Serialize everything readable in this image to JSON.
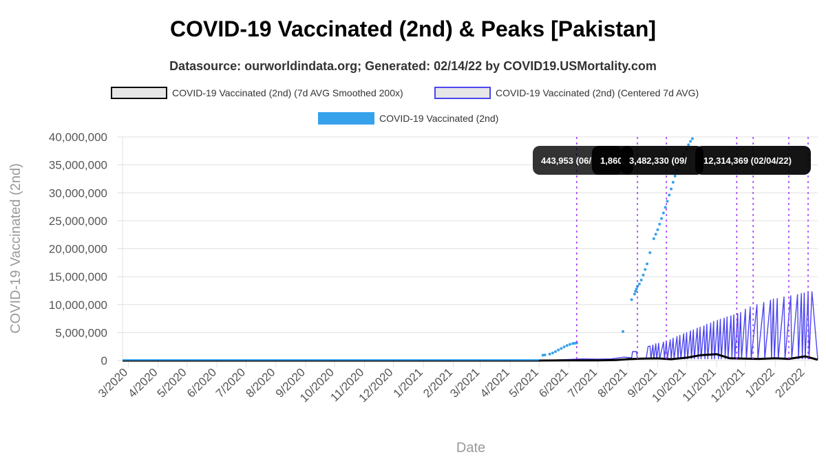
{
  "title": "COVID-19 Vaccinated (2nd) & Peaks [Pakistan]",
  "subtitle": "Datasource: ourworldindata.org; Generated: 02/14/22 by COVID19.USMortality.com",
  "colors": {
    "smoothed": "#000000",
    "centered": "#4b45f0",
    "raw": "#36a2eb",
    "peak_line": "#9b30ff",
    "grid": "#e0e0e0",
    "tooltip_bg": "#000000"
  },
  "chart_data": {
    "type": "line",
    "xlabel": "Date",
    "ylabel": "COVID-19 Vaccinated (2nd)",
    "ylim": [
      0,
      40000000
    ],
    "y_ticks": [
      0,
      5000000,
      10000000,
      15000000,
      20000000,
      25000000,
      30000000,
      35000000,
      40000000
    ],
    "y_tick_labels": [
      "0",
      "5,000,000",
      "10,000,000",
      "15,000,000",
      "20,000,000",
      "25,000,000",
      "30,000,000",
      "35,000,000",
      "40,000,000"
    ],
    "xlim": [
      "2020-02-24",
      "2022-02-14"
    ],
    "x_ticks": [
      "2020-03-01",
      "2020-04-01",
      "2020-05-01",
      "2020-06-01",
      "2020-07-01",
      "2020-08-01",
      "2020-09-01",
      "2020-10-01",
      "2020-11-01",
      "2020-12-01",
      "2021-01-01",
      "2021-02-01",
      "2021-03-01",
      "2021-04-01",
      "2021-05-01",
      "2021-06-01",
      "2021-07-01",
      "2021-08-01",
      "2021-09-01",
      "2021-10-01",
      "2021-11-01",
      "2021-12-01",
      "2022-01-01",
      "2022-02-01"
    ],
    "x_tick_labels": [
      "3/2020",
      "4/2020",
      "5/2020",
      "6/2020",
      "7/2020",
      "8/2020",
      "9/2020",
      "10/2020",
      "11/2020",
      "12/2020",
      "1/2021",
      "2/2021",
      "3/2021",
      "4/2021",
      "5/2021",
      "6/2021",
      "7/2021",
      "8/2021",
      "9/2021",
      "10/2021",
      "11/2021",
      "12/2021",
      "1/2022",
      "2/2022"
    ],
    "legend": [
      {
        "label": "COVID-19 Vaccinated (2nd) (7d AVG Smoothed 200x)",
        "fill": "#e6e6e6",
        "stroke": "#000000"
      },
      {
        "label": "COVID-19 Vaccinated (2nd) (Centered 7d AVG)",
        "fill": "#e6e6e6",
        "stroke": "#4b45f0"
      },
      {
        "label": "COVID-19 Vaccinated (2nd)",
        "fill": "#36a2eb",
        "stroke": "#36a2eb"
      }
    ],
    "series": [
      {
        "name": "COVID-19 Vaccinated (2nd)",
        "style": "points",
        "x": [
          "2021-05-05",
          "2021-05-07",
          "2021-05-12",
          "2021-05-15",
          "2021-05-18",
          "2021-05-21",
          "2021-05-24",
          "2021-05-27",
          "2021-05-30",
          "2021-06-02",
          "2021-06-05",
          "2021-06-07",
          "2021-06-09",
          "2021-07-27",
          "2021-08-05",
          "2021-08-08",
          "2021-08-09",
          "2021-08-10",
          "2021-08-11",
          "2021-08-13",
          "2021-08-15",
          "2021-08-17",
          "2021-08-19",
          "2021-08-21",
          "2021-08-24",
          "2021-08-28",
          "2021-08-30",
          "2021-09-01",
          "2021-09-03",
          "2021-09-05",
          "2021-09-07",
          "2021-09-09",
          "2021-09-11",
          "2021-09-13",
          "2021-09-15",
          "2021-09-17",
          "2021-09-19",
          "2021-09-21",
          "2021-09-23",
          "2021-09-25",
          "2021-09-28",
          "2021-10-01",
          "2021-10-03",
          "2021-10-05",
          "2021-10-07",
          "2021-10-10",
          "2021-10-13"
        ],
        "y": [
          950000,
          1000000,
          1150000,
          1350000,
          1600000,
          1900000,
          2150000,
          2450000,
          2700000,
          2900000,
          3050000,
          3100000,
          3150000,
          5200000,
          10900000,
          11900000,
          12400000,
          12800000,
          13300000,
          13700000,
          14400000,
          15300000,
          16300000,
          17300000,
          19300000,
          21800000,
          22600000,
          23400000,
          24400000,
          25400000,
          26400000,
          27400000,
          28500000,
          29600000,
          30700000,
          31900000,
          33000000,
          34000000,
          35000000,
          36000000,
          36900000,
          37800000,
          38600000,
          39200000,
          39700000,
          40400000,
          41200000
        ]
      },
      {
        "name": "COVID-19 Vaccinated (2nd) (Centered 7d AVG)",
        "style": "line",
        "x": [
          "2020-02-24",
          "2021-05-01",
          "2021-06-01",
          "2021-06-15",
          "2021-07-01",
          "2021-07-15",
          "2021-07-28",
          "2021-08-05",
          "2021-08-06",
          "2021-08-10",
          "2021-08-11",
          "2021-08-20",
          "2021-08-22",
          "2021-08-24",
          "2021-08-25",
          "2021-08-27",
          "2021-08-28",
          "2021-08-30",
          "2021-08-31",
          "2021-09-02",
          "2021-09-03",
          "2021-09-07",
          "2021-09-08",
          "2021-09-10",
          "2021-09-11",
          "2021-09-14",
          "2021-09-15",
          "2021-09-17",
          "2021-09-18",
          "2021-09-21",
          "2021-09-22",
          "2021-09-24",
          "2021-09-25",
          "2021-09-28",
          "2021-09-29",
          "2021-10-01",
          "2021-10-02",
          "2021-10-05",
          "2021-10-06",
          "2021-10-08",
          "2021-10-09",
          "2021-10-12",
          "2021-10-13",
          "2021-10-15",
          "2021-10-16",
          "2021-10-19",
          "2021-10-20",
          "2021-10-22",
          "2021-10-23",
          "2021-10-26",
          "2021-10-27",
          "2021-10-29",
          "2021-10-30",
          "2021-11-02",
          "2021-11-03",
          "2021-11-05",
          "2021-11-06",
          "2021-11-09",
          "2021-11-10",
          "2021-11-12",
          "2021-11-13",
          "2021-11-16",
          "2021-11-17",
          "2021-11-19",
          "2021-11-20",
          "2021-11-23",
          "2021-11-24",
          "2021-11-26",
          "2021-11-27",
          "2021-12-01",
          "2021-12-02",
          "2021-12-06",
          "2021-12-07",
          "2021-12-13",
          "2021-12-14",
          "2021-12-20",
          "2021-12-21",
          "2021-12-27",
          "2021-12-28",
          "2021-12-30",
          "2021-12-31",
          "2022-01-03",
          "2022-01-04",
          "2022-01-10",
          "2022-01-11",
          "2022-01-17",
          "2022-01-18",
          "2022-01-24",
          "2022-01-25",
          "2022-01-28",
          "2022-01-29",
          "2022-01-31",
          "2022-02-01",
          "2022-02-04",
          "2022-02-05",
          "2022-02-08",
          "2022-02-14"
        ],
        "y": [
          0,
          0,
          200000,
          300000,
          250000,
          300000,
          600000,
          500000,
          1600000,
          1600000,
          400000,
          300000,
          2500000,
          2600000,
          300000,
          2800000,
          300000,
          3000000,
          300000,
          3100000,
          300000,
          3300000,
          300000,
          3500000,
          300000,
          3700000,
          300000,
          4000000,
          300000,
          4300000,
          300000,
          4500000,
          300000,
          4800000,
          300000,
          5000000,
          300000,
          5300000,
          300000,
          5500000,
          300000,
          5800000,
          300000,
          6000000,
          300000,
          6200000,
          300000,
          6500000,
          300000,
          6700000,
          300000,
          7000000,
          300000,
          7200000,
          300000,
          7400000,
          300000,
          7600000,
          300000,
          7800000,
          300000,
          8000000,
          300000,
          8200000,
          300000,
          8400000,
          300000,
          8600000,
          300000,
          9200000,
          300000,
          9600000,
          300000,
          10000000,
          300000,
          10400000,
          300000,
          10800000,
          300000,
          11000000,
          300000,
          11100000,
          300000,
          11400000,
          300000,
          11600000,
          300000,
          11800000,
          300000,
          12000000,
          300000,
          12100000,
          300000,
          12300000,
          300000,
          12314369,
          200000
        ]
      },
      {
        "name": "COVID-19 Vaccinated (2nd) (7d AVG Smoothed 200x)",
        "style": "line",
        "x": [
          "2020-02-24",
          "2021-05-01",
          "2021-06-01",
          "2021-07-01",
          "2021-07-20",
          "2021-08-01",
          "2021-08-15",
          "2021-09-01",
          "2021-09-15",
          "2021-10-01",
          "2021-10-15",
          "2021-11-01",
          "2021-11-15",
          "2021-12-01",
          "2021-12-15",
          "2022-01-01",
          "2022-01-15",
          "2022-02-01",
          "2022-02-14"
        ],
        "y": [
          0,
          0,
          20000,
          20000,
          100000,
          250000,
          350000,
          380000,
          250000,
          500000,
          950000,
          1150000,
          400000,
          350000,
          300000,
          400000,
          300000,
          750000,
          150000
        ]
      }
    ],
    "peaks": [
      {
        "x": "2021-06-09"
      },
      {
        "x": "2021-08-11"
      },
      {
        "x": "2021-09-10"
      },
      {
        "x": "2021-11-22"
      },
      {
        "x": "2021-12-09"
      },
      {
        "x": "2022-01-15"
      },
      {
        "x": "2022-02-04"
      }
    ],
    "tooltips": [
      {
        "text": "443,953 (06/"
      },
      {
        "text": "1,860,"
      },
      {
        "text": "3,482,330 (09/"
      },
      {
        "text": "12,314,369 (02/04/22)"
      }
    ]
  }
}
